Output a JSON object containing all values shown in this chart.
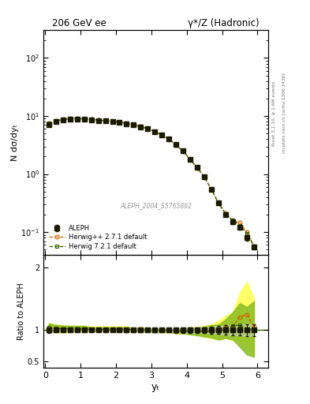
{
  "title_left": "206 GeV ee",
  "title_right": "γ*/Z (Hadronic)",
  "ylabel_main": "N dσ/dyₜ",
  "ylabel_ratio": "Ratio to ALEPH",
  "xlabel": "yₜ",
  "right_label_top": "Rivet 3.1.10, ≥ 2.6M events",
  "right_label_bottom": "mcplots.cern.ch [arXiv:1306.3436]",
  "watermark": "ALEPH_2004_S5765862",
  "ylim_main": [
    0.04,
    300
  ],
  "ylim_ratio": [
    0.4,
    2.2
  ],
  "xlim": [
    -0.05,
    6.3
  ],
  "aleph_x": [
    0.1,
    0.3,
    0.5,
    0.7,
    0.9,
    1.1,
    1.3,
    1.5,
    1.7,
    1.9,
    2.1,
    2.3,
    2.5,
    2.7,
    2.9,
    3.1,
    3.3,
    3.5,
    3.7,
    3.9,
    4.1,
    4.3,
    4.5,
    4.7,
    4.9,
    5.1,
    5.3,
    5.5,
    5.7,
    5.9
  ],
  "aleph_y": [
    7.2,
    8.0,
    8.5,
    8.8,
    8.8,
    8.7,
    8.6,
    8.4,
    8.2,
    8.0,
    7.7,
    7.4,
    7.0,
    6.5,
    6.0,
    5.4,
    4.7,
    4.0,
    3.2,
    2.5,
    1.8,
    1.3,
    0.9,
    0.55,
    0.32,
    0.2,
    0.15,
    0.12,
    0.08,
    0.055
  ],
  "aleph_yerr": [
    0.3,
    0.2,
    0.2,
    0.2,
    0.2,
    0.2,
    0.2,
    0.2,
    0.2,
    0.2,
    0.2,
    0.2,
    0.2,
    0.2,
    0.15,
    0.15,
    0.1,
    0.1,
    0.1,
    0.1,
    0.08,
    0.06,
    0.04,
    0.03,
    0.02,
    0.015,
    0.012,
    0.01,
    0.008,
    0.005
  ],
  "herwig_pp_x": [
    0.1,
    0.3,
    0.5,
    0.7,
    0.9,
    1.1,
    1.3,
    1.5,
    1.7,
    1.9,
    2.1,
    2.3,
    2.5,
    2.7,
    2.9,
    3.1,
    3.3,
    3.5,
    3.7,
    3.9,
    4.1,
    4.3,
    4.5,
    4.7,
    4.9,
    5.1,
    5.3,
    5.5,
    5.7,
    5.9
  ],
  "herwig_pp_y": [
    7.5,
    8.2,
    8.7,
    9.0,
    9.0,
    8.9,
    8.7,
    8.5,
    8.3,
    8.1,
    7.8,
    7.5,
    7.0,
    6.6,
    6.0,
    5.4,
    4.7,
    4.0,
    3.15,
    2.48,
    1.78,
    1.28,
    0.88,
    0.54,
    0.32,
    0.21,
    0.16,
    0.145,
    0.1,
    0.058
  ],
  "herwig72_x": [
    0.1,
    0.3,
    0.5,
    0.7,
    0.9,
    1.1,
    1.3,
    1.5,
    1.7,
    1.9,
    2.1,
    2.3,
    2.5,
    2.7,
    2.9,
    3.1,
    3.3,
    3.5,
    3.7,
    3.9,
    4.1,
    4.3,
    4.5,
    4.7,
    4.9,
    5.1,
    5.3,
    5.5,
    5.7,
    5.9
  ],
  "herwig72_y": [
    7.5,
    8.2,
    8.7,
    9.0,
    9.0,
    8.9,
    8.7,
    8.5,
    8.3,
    8.1,
    7.8,
    7.5,
    7.05,
    6.55,
    6.0,
    5.38,
    4.68,
    3.98,
    3.14,
    2.47,
    1.77,
    1.27,
    0.88,
    0.54,
    0.31,
    0.205,
    0.16,
    0.13,
    0.095,
    0.056
  ],
  "herwig_pp_ratio": [
    1.04,
    1.03,
    1.02,
    1.02,
    1.02,
    1.02,
    1.01,
    1.01,
    1.01,
    1.01,
    1.01,
    1.01,
    1.0,
    1.015,
    1.0,
    1.0,
    1.0,
    1.0,
    0.984,
    0.992,
    0.989,
    0.985,
    0.978,
    0.982,
    1.0,
    1.05,
    1.067,
    1.21,
    1.25,
    1.055
  ],
  "herwig72_ratio": [
    1.04,
    1.025,
    1.024,
    1.023,
    1.023,
    1.023,
    1.012,
    1.012,
    1.012,
    1.012,
    1.013,
    1.014,
    1.007,
    1.008,
    1.0,
    0.996,
    0.996,
    0.995,
    0.981,
    0.988,
    0.983,
    0.977,
    0.978,
    0.982,
    0.969,
    1.025,
    1.067,
    1.083,
    1.01,
    1.019
  ],
  "herwig_pp_band_lo": [
    0.97,
    0.97,
    0.96,
    0.97,
    0.97,
    0.97,
    0.98,
    0.98,
    0.98,
    0.98,
    0.98,
    0.98,
    0.97,
    0.98,
    0.97,
    0.97,
    0.97,
    0.97,
    0.95,
    0.95,
    0.93,
    0.92,
    0.89,
    0.87,
    0.85,
    0.87,
    0.84,
    0.82,
    0.72,
    0.6
  ],
  "herwig_pp_band_hi": [
    1.11,
    1.09,
    1.08,
    1.07,
    1.07,
    1.07,
    1.06,
    1.06,
    1.06,
    1.06,
    1.06,
    1.06,
    1.03,
    1.05,
    1.03,
    1.03,
    1.03,
    1.03,
    1.02,
    1.03,
    1.05,
    1.05,
    1.07,
    1.09,
    1.15,
    1.23,
    1.29,
    1.6,
    1.78,
    1.51
  ],
  "herwig72_band_lo": [
    0.97,
    0.965,
    0.974,
    0.978,
    0.978,
    0.978,
    0.981,
    0.981,
    0.981,
    0.981,
    0.982,
    0.982,
    0.977,
    0.978,
    0.97,
    0.966,
    0.966,
    0.965,
    0.951,
    0.948,
    0.933,
    0.917,
    0.898,
    0.882,
    0.849,
    0.875,
    0.847,
    0.733,
    0.608,
    0.574
  ],
  "herwig72_band_hi": [
    1.11,
    1.085,
    1.074,
    1.068,
    1.068,
    1.068,
    1.043,
    1.043,
    1.043,
    1.043,
    1.044,
    1.046,
    1.037,
    1.038,
    1.03,
    1.026,
    1.026,
    1.025,
    1.011,
    1.028,
    1.033,
    1.037,
    1.058,
    1.082,
    1.089,
    1.175,
    1.287,
    1.433,
    1.368,
    1.464
  ],
  "color_aleph": "#1a1a00",
  "color_herwig_pp": "#cc6600",
  "color_herwig72": "#336600",
  "color_herwig_pp_band": "#ffff66",
  "color_herwig72_band": "#88bb22",
  "legend_labels": [
    "ALEPH",
    "Herwig++ 2.7.1 default",
    "Herwig 7.2.1 default"
  ]
}
